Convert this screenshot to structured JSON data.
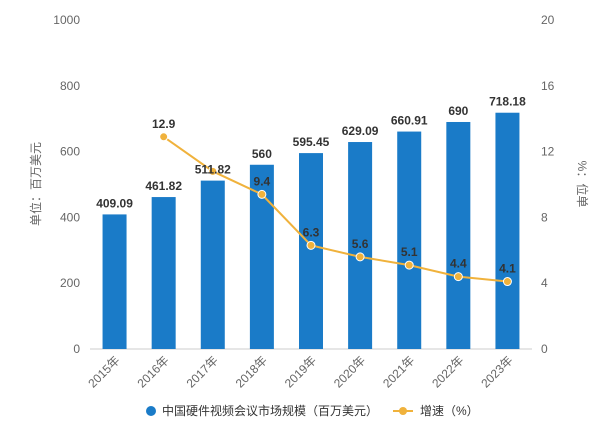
{
  "chart_data": {
    "type": "bar",
    "categories": [
      "2015年",
      "2016年",
      "2017年",
      "2018年",
      "2019年",
      "2020年",
      "2021年",
      "2022年",
      "2023年"
    ],
    "series": [
      {
        "name": "中国硬件视频会议市场规模（百万美元）",
        "type": "bar",
        "axis": "left",
        "color": "#1a7bc8",
        "values": [
          409.09,
          461.82,
          511.82,
          560,
          595.45,
          629.09,
          660.91,
          690,
          718.18
        ],
        "labels": [
          "409.09",
          "461.82",
          "511.82",
          "560",
          "595.45",
          "629.09",
          "660.91",
          "690",
          "718.18"
        ]
      },
      {
        "name": "增速（%）",
        "type": "line",
        "axis": "right",
        "color": "#f0b23c",
        "values": [
          null,
          12.9,
          10.8,
          9.4,
          6.3,
          5.6,
          5.1,
          4.4,
          4.1
        ],
        "labels": [
          "",
          "12.9",
          "",
          "9.4",
          "6.3",
          "5.6",
          "5.1",
          "4.4",
          "4.1"
        ]
      }
    ],
    "y_left": {
      "label": "单位：百万美元",
      "range": [
        0,
        1000
      ],
      "ticks": [
        "0",
        "200",
        "400",
        "600",
        "800",
        "1000"
      ]
    },
    "y_right": {
      "label": "%：位单",
      "range": [
        0,
        20
      ],
      "ticks": [
        "0",
        "4",
        "8",
        "12",
        "16",
        "20"
      ]
    },
    "grid": false,
    "legend_position": "bottom"
  }
}
